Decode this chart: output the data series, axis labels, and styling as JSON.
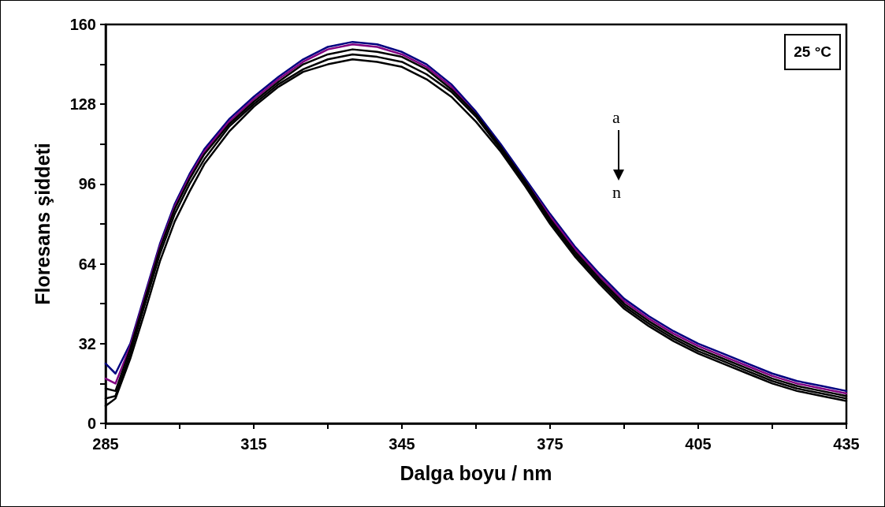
{
  "chart_data": {
    "type": "line",
    "xlabel": "Dalga boyu / nm",
    "ylabel": "Floresans şiddeti",
    "x": [
      285,
      287,
      290,
      293,
      296,
      299,
      302,
      305,
      310,
      315,
      320,
      325,
      330,
      335,
      340,
      345,
      350,
      355,
      360,
      365,
      370,
      375,
      380,
      385,
      390,
      395,
      400,
      405,
      410,
      415,
      420,
      425,
      430,
      435
    ],
    "series": [
      {
        "color": "#000080",
        "values": [
          24,
          20,
          32,
          52,
          72,
          88,
          100,
          110,
          122,
          131,
          139,
          146,
          151,
          153,
          152,
          149,
          144,
          136,
          125,
          112,
          98,
          84,
          71,
          60,
          50,
          43,
          37,
          32,
          28,
          24,
          20,
          17,
          15,
          13
        ]
      },
      {
        "color": "#800080",
        "values": [
          18,
          16,
          31,
          51,
          71,
          87,
          99,
          109,
          121,
          130,
          138,
          145,
          150,
          152,
          151,
          148,
          143,
          135,
          124,
          111,
          97,
          83,
          70,
          59,
          49,
          42,
          36,
          31,
          27,
          23,
          19,
          16,
          14,
          12
        ]
      },
      {
        "color": "#000000",
        "values": [
          14,
          13,
          30,
          50,
          70,
          86,
          98,
          108,
          120,
          129,
          137,
          144,
          148,
          150,
          149,
          147,
          142,
          134,
          124,
          111,
          97,
          82,
          69,
          58,
          48,
          41,
          35,
          30,
          26,
          22,
          18,
          15,
          13,
          11
        ]
      },
      {
        "color": "#000000",
        "values": [
          10,
          11,
          28,
          48,
          68,
          84,
          96,
          106,
          119,
          128,
          136,
          142,
          146,
          148,
          147,
          145,
          140,
          133,
          123,
          110,
          96,
          81,
          68,
          57,
          47,
          40,
          34,
          29,
          25,
          21,
          17,
          14,
          12,
          10
        ]
      },
      {
        "color": "#000000",
        "values": [
          7,
          10,
          26,
          45,
          65,
          81,
          93,
          104,
          117,
          127,
          135,
          141,
          144,
          146,
          145,
          143,
          138,
          131,
          121,
          109,
          95,
          80,
          67,
          56,
          46,
          39,
          33,
          28,
          24,
          20,
          16,
          13,
          11,
          9
        ]
      }
    ],
    "xlim": [
      285,
      435
    ],
    "xticks": [
      285,
      {
        "value": 300,
        "label": null
      },
      315,
      {
        "value": 330,
        "label": null
      },
      345,
      {
        "value": 360,
        "label": null
      },
      375,
      {
        "value": 390,
        "label": null
      },
      405,
      {
        "value": 420,
        "label": null
      },
      435
    ],
    "ylim": [
      0,
      160
    ],
    "yticks": [
      0,
      {
        "value": 16,
        "label": null
      },
      32,
      {
        "value": 48,
        "label": null
      },
      64,
      {
        "value": 80,
        "label": null
      },
      96,
      {
        "value": 112,
        "label": null
      },
      128,
      {
        "value": 144,
        "label": null
      },
      160
    ],
    "annotations": [
      "25 °C",
      "a",
      "n"
    ],
    "grid": false,
    "marker": "none",
    "line_style": "solid"
  }
}
